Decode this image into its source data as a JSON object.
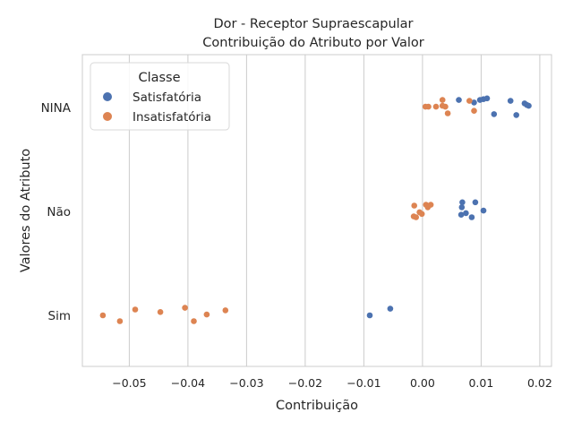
{
  "chart_data": {
    "type": "scatter",
    "title": "Dor - Receptor Supraescapular",
    "subtitle": "Contribuição do Atributo por Valor",
    "xlabel": "Contribuição",
    "ylabel": "Valores do Atributo",
    "xlim": [
      -0.058,
      0.022
    ],
    "x_ticks": [
      -0.05,
      -0.04,
      -0.03,
      -0.02,
      -0.01,
      0.0,
      0.01,
      0.02
    ],
    "x_tick_labels": [
      "−0.05",
      "−0.04",
      "−0.03",
      "−0.02",
      "−0.01",
      "0.00",
      "0.01",
      "0.02"
    ],
    "categories": [
      "NINA",
      "Não",
      "Sim"
    ],
    "grid": "vertical",
    "legend": {
      "title": "Classe",
      "position": "top-left"
    },
    "series": [
      {
        "name": "Satisfatória",
        "color": "#4c72b0",
        "points": [
          {
            "x": 0.0062,
            "category": "NINA",
            "jitter": -0.09
          },
          {
            "x": 0.0088,
            "category": "NINA",
            "jitter": -0.06
          },
          {
            "x": 0.0098,
            "category": "NINA",
            "jitter": -0.09
          },
          {
            "x": 0.0104,
            "category": "NINA",
            "jitter": -0.1
          },
          {
            "x": 0.011,
            "category": "NINA",
            "jitter": -0.11
          },
          {
            "x": 0.0122,
            "category": "NINA",
            "jitter": 0.08
          },
          {
            "x": 0.015,
            "category": "NINA",
            "jitter": -0.08
          },
          {
            "x": 0.016,
            "category": "NINA",
            "jitter": 0.09
          },
          {
            "x": 0.0174,
            "category": "NINA",
            "jitter": -0.05
          },
          {
            "x": 0.0178,
            "category": "NINA",
            "jitter": -0.03
          },
          {
            "x": 0.0181,
            "category": "NINA",
            "jitter": -0.02
          },
          {
            "x": 0.0068,
            "category": "Não",
            "jitter": -0.11
          },
          {
            "x": 0.009,
            "category": "Não",
            "jitter": -0.11
          },
          {
            "x": 0.0067,
            "category": "Não",
            "jitter": -0.05
          },
          {
            "x": 0.0104,
            "category": "Não",
            "jitter": -0.01
          },
          {
            "x": 0.0074,
            "category": "Não",
            "jitter": 0.02
          },
          {
            "x": 0.0066,
            "category": "Não",
            "jitter": 0.04
          },
          {
            "x": 0.0084,
            "category": "Não",
            "jitter": 0.07
          },
          {
            "x": -0.0055,
            "category": "Sim",
            "jitter": -0.08
          },
          {
            "x": -0.009,
            "category": "Sim",
            "jitter": 0.0
          }
        ]
      },
      {
        "name": "Insatisfatória",
        "color": "#dd8452",
        "points": [
          {
            "x": 0.0034,
            "category": "NINA",
            "jitter": -0.09
          },
          {
            "x": 0.008,
            "category": "NINA",
            "jitter": -0.08
          },
          {
            "x": 0.0034,
            "category": "NINA",
            "jitter": -0.02
          },
          {
            "x": 0.0039,
            "category": "NINA",
            "jitter": -0.01
          },
          {
            "x": 0.0005,
            "category": "NINA",
            "jitter": -0.01
          },
          {
            "x": 0.001,
            "category": "NINA",
            "jitter": -0.01
          },
          {
            "x": 0.0023,
            "category": "NINA",
            "jitter": -0.01
          },
          {
            "x": 0.0043,
            "category": "NINA",
            "jitter": 0.07
          },
          {
            "x": 0.0088,
            "category": "NINA",
            "jitter": 0.04
          },
          {
            "x": -0.0014,
            "category": "Não",
            "jitter": -0.07
          },
          {
            "x": 0.0006,
            "category": "Não",
            "jitter": -0.08
          },
          {
            "x": 0.0014,
            "category": "Não",
            "jitter": -0.08
          },
          {
            "x": 0.0009,
            "category": "Não",
            "jitter": -0.05
          },
          {
            "x": -0.0005,
            "category": "Não",
            "jitter": 0.01
          },
          {
            "x": -0.0001,
            "category": "Não",
            "jitter": 0.03
          },
          {
            "x": -0.0015,
            "category": "Não",
            "jitter": 0.06
          },
          {
            "x": -0.0011,
            "category": "Não",
            "jitter": 0.07
          },
          {
            "x": -0.049,
            "category": "Sim",
            "jitter": -0.07
          },
          {
            "x": -0.0405,
            "category": "Sim",
            "jitter": -0.09
          },
          {
            "x": -0.0336,
            "category": "Sim",
            "jitter": -0.06
          },
          {
            "x": -0.0447,
            "category": "Sim",
            "jitter": -0.04
          },
          {
            "x": -0.0368,
            "category": "Sim",
            "jitter": -0.01
          },
          {
            "x": -0.0545,
            "category": "Sim",
            "jitter": 0.0
          },
          {
            "x": -0.039,
            "category": "Sim",
            "jitter": 0.07
          },
          {
            "x": -0.0516,
            "category": "Sim",
            "jitter": 0.07
          }
        ]
      }
    ]
  }
}
